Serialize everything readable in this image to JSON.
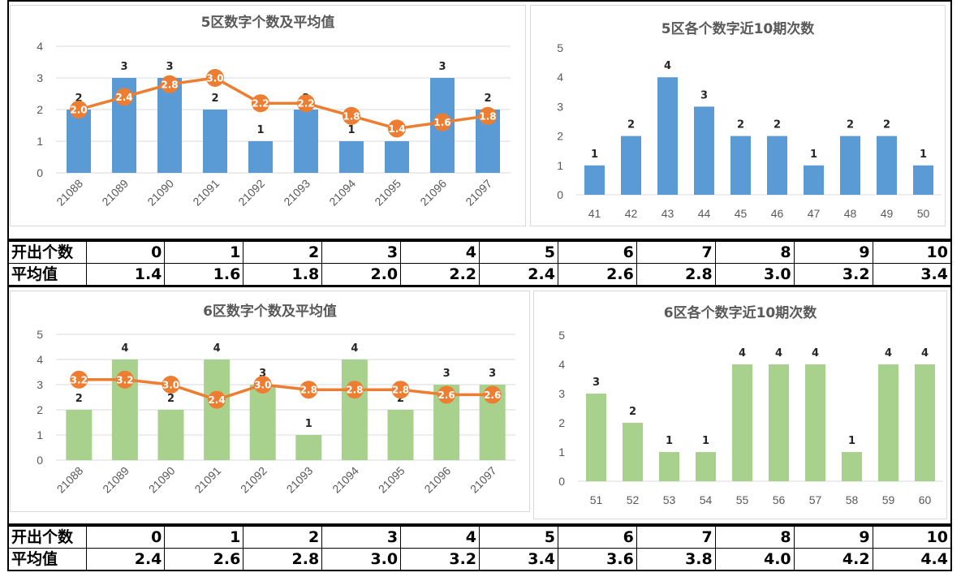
{
  "colors": {
    "blue": "#5b9bd5",
    "green": "#a9d18e",
    "orange": "#ed7d31",
    "grid": "#d9d9d9",
    "text": "#595959"
  },
  "zone5": {
    "avg_chart": {
      "title": "5区数字个数及平均值"
    },
    "freq_chart": {
      "title": "5区各个数字近10期次数"
    },
    "table": {
      "row1_label": "开出个数",
      "row2_label": "平均值",
      "counts": [
        "0",
        "1",
        "2",
        "3",
        "4",
        "5",
        "6",
        "7",
        "8",
        "9",
        "10"
      ],
      "averages": [
        "1.4",
        "1.6",
        "1.8",
        "2.0",
        "2.2",
        "2.4",
        "2.6",
        "2.8",
        "3.0",
        "3.2",
        "3.4"
      ]
    }
  },
  "zone6": {
    "avg_chart": {
      "title": "6区数字个数及平均值"
    },
    "freq_chart": {
      "title": "6区各个数字近10期次数"
    },
    "table": {
      "row1_label": "开出个数",
      "row2_label": "平均值",
      "counts": [
        "0",
        "1",
        "2",
        "3",
        "4",
        "5",
        "6",
        "7",
        "8",
        "9",
        "10"
      ],
      "averages": [
        "2.4",
        "2.6",
        "2.8",
        "3.0",
        "3.2",
        "3.4",
        "3.6",
        "3.8",
        "4.0",
        "4.2",
        "4.4"
      ]
    }
  },
  "chart_data": [
    {
      "id": "z5avg",
      "type": "bar",
      "title": "5区数字个数及平均值",
      "categories": [
        "21088",
        "21089",
        "21090",
        "21091",
        "21092",
        "21093",
        "21094",
        "21095",
        "21096",
        "21097"
      ],
      "series": [
        {
          "kind": "bar",
          "values": [
            2,
            3,
            3,
            2,
            1,
            2,
            1,
            1,
            3,
            2
          ]
        },
        {
          "kind": "line",
          "values": [
            2.0,
            2.4,
            2.8,
            3.0,
            2.2,
            2.2,
            1.8,
            1.4,
            1.6,
            1.8
          ]
        }
      ],
      "ylim": [
        0,
        4
      ],
      "yticks": [
        "0",
        "1",
        "2",
        "3",
        "4"
      ],
      "grid": true,
      "color": "#5b9bd5",
      "line_color": "#ed7d31"
    },
    {
      "id": "z5freq",
      "type": "bar",
      "title": "5区各个数字近10期次数",
      "categories": [
        "41",
        "42",
        "43",
        "44",
        "45",
        "46",
        "47",
        "48",
        "49",
        "50"
      ],
      "values": [
        1,
        2,
        4,
        3,
        2,
        2,
        1,
        2,
        2,
        1
      ],
      "ylim": [
        0,
        5
      ],
      "yticks": [
        "0",
        "1",
        "2",
        "3",
        "4",
        "5"
      ],
      "grid": false,
      "color": "#5b9bd5"
    },
    {
      "id": "z6avg",
      "type": "bar",
      "title": "6区数字个数及平均值",
      "categories": [
        "21088",
        "21089",
        "21090",
        "21091",
        "21092",
        "21093",
        "21094",
        "21095",
        "21096",
        "21097"
      ],
      "series": [
        {
          "kind": "bar",
          "values": [
            2,
            4,
            2,
            4,
            3,
            1,
            4,
            2,
            3,
            3
          ]
        },
        {
          "kind": "line",
          "values": [
            3.2,
            3.2,
            3.0,
            2.4,
            3.0,
            2.8,
            2.8,
            2.8,
            2.6,
            2.6
          ]
        }
      ],
      "ylim": [
        0,
        5
      ],
      "yticks": [
        "0",
        "1",
        "2",
        "3",
        "4",
        "5"
      ],
      "grid": true,
      "color": "#a9d18e",
      "line_color": "#ed7d31"
    },
    {
      "id": "z6freq",
      "type": "bar",
      "title": "6区各个数字近10期次数",
      "categories": [
        "51",
        "52",
        "53",
        "54",
        "55",
        "56",
        "57",
        "58",
        "59",
        "60"
      ],
      "values": [
        3,
        2,
        1,
        1,
        4,
        4,
        4,
        1,
        4,
        4
      ],
      "ylim": [
        0,
        5
      ],
      "yticks": [
        "0",
        "1",
        "2",
        "3",
        "4",
        "5"
      ],
      "grid": false,
      "color": "#a9d18e"
    }
  ]
}
